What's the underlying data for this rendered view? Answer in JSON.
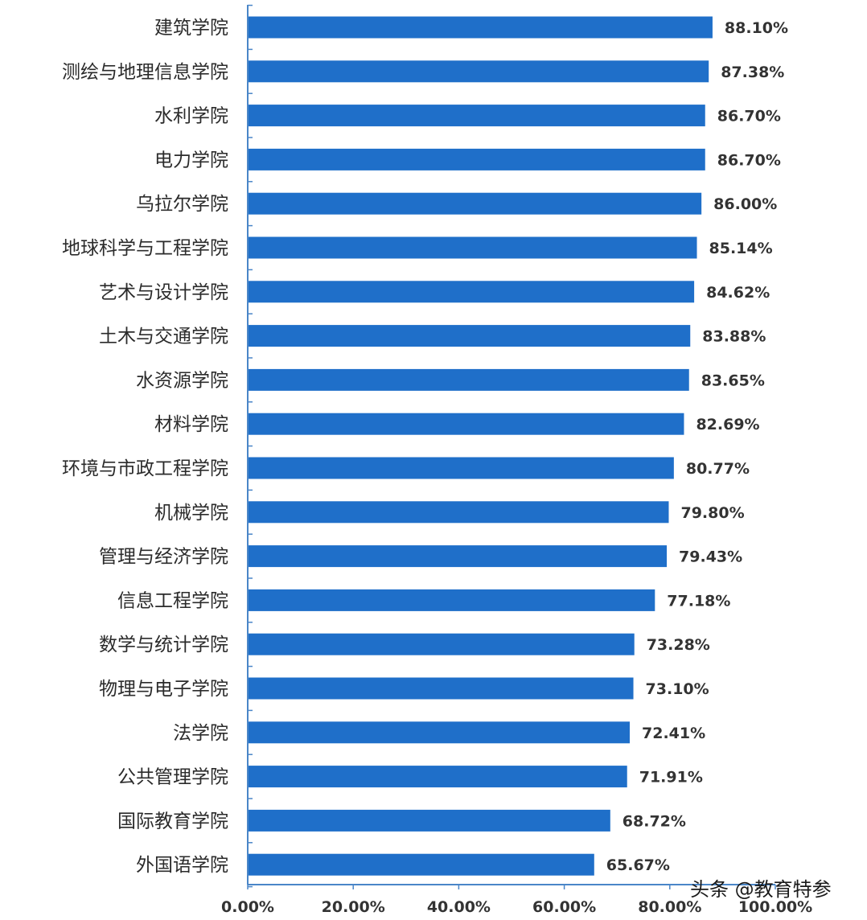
{
  "chart_data": {
    "type": "bar",
    "orientation": "horizontal",
    "categories": [
      "建筑学院",
      "测绘与地理信息学院",
      "水利学院",
      "电力学院",
      "乌拉尔学院",
      "地球科学与工程学院",
      "艺术与设计学院",
      "土木与交通学院",
      "水资源学院",
      "材料学院",
      "环境与市政工程学院",
      "机械学院",
      "管理与经济学院",
      "信息工程学院",
      "数学与统计学院",
      "物理与电子学院",
      "法学院",
      "公共管理学院",
      "国际教育学院",
      "外国语学院"
    ],
    "values": [
      88.1,
      87.38,
      86.7,
      86.7,
      86.0,
      85.14,
      84.62,
      83.88,
      83.65,
      82.69,
      80.77,
      79.8,
      79.43,
      77.18,
      73.28,
      73.1,
      72.41,
      71.91,
      68.72,
      65.67
    ],
    "value_labels": [
      "88.10%",
      "87.38%",
      "86.70%",
      "86.70%",
      "86.00%",
      "85.14%",
      "84.62%",
      "83.88%",
      "83.65%",
      "82.69%",
      "80.77%",
      "79.80%",
      "79.43%",
      "77.18%",
      "73.28%",
      "73.10%",
      "72.41%",
      "71.91%",
      "68.72%",
      "65.67%"
    ],
    "xlim": [
      0,
      100
    ],
    "x_ticks": [
      0,
      20,
      40,
      60,
      80,
      100
    ],
    "x_tick_labels": [
      "0.00%",
      "20.00%",
      "40.00%",
      "60.00%",
      "80.00%",
      "100.00%"
    ],
    "title": "",
    "xlabel": "",
    "ylabel": "",
    "grid": false,
    "legend": "none",
    "bar_color": "#1f6fc9",
    "axis_color": "#4a86c8"
  },
  "watermark": {
    "text": "头条 @教育特参"
  }
}
